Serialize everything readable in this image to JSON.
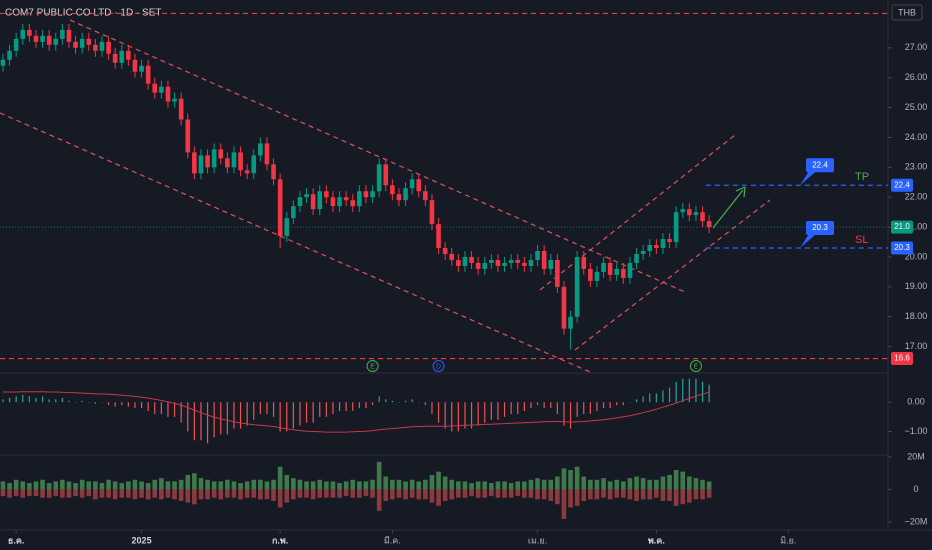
{
  "chart_data": [
    {
      "type": "candlestick",
      "title": "COM7 PUBLIC CO LTD · 1D · SET",
      "currency": "THB",
      "up_color": "#089981",
      "down_color": "#f23645",
      "open": [
        26.4,
        26.6,
        26.9,
        27.3,
        27.6,
        27.4,
        27.2,
        27.4,
        27.1,
        27.3,
        27.6,
        27.2,
        27.0,
        27.3,
        27.1,
        26.9,
        27.2,
        26.8,
        26.5,
        26.9,
        26.6,
        26.2,
        26.4,
        25.8,
        25.5,
        25.7,
        25.2,
        25.3,
        24.6,
        23.5,
        22.8,
        23.4,
        23.0,
        23.6,
        23.3,
        23.0,
        23.5,
        22.9,
        22.8,
        23.4,
        23.8,
        23.1,
        22.6,
        20.7,
        21.3,
        21.7,
        22.0,
        22.1,
        21.6,
        22.2,
        22.0,
        21.7,
        22.0,
        21.9,
        21.7,
        22.2,
        22.0,
        22.2,
        23.1,
        22.4,
        22.1,
        21.9,
        22.3,
        22.6,
        22.2,
        21.9,
        21.1,
        20.3,
        20.1,
        19.9,
        19.7,
        20.0,
        19.8,
        19.6,
        19.8,
        19.9,
        19.7,
        19.8,
        19.9,
        19.8,
        19.7,
        19.9,
        20.2,
        19.6,
        19.9,
        19.0,
        17.6,
        18.0,
        20.0,
        19.6,
        19.2,
        19.5,
        19.8,
        19.4,
        19.6,
        19.3,
        19.8,
        20.1,
        20.2,
        20.4,
        20.3,
        20.6,
        20.5,
        21.5,
        21.6,
        21.4,
        21.5,
        21.2
      ],
      "high": [
        26.8,
        27.1,
        27.5,
        27.8,
        27.8,
        27.6,
        27.6,
        27.6,
        27.5,
        27.8,
        27.8,
        27.4,
        27.5,
        27.5,
        27.3,
        27.4,
        27.4,
        27.0,
        27.1,
        27.1,
        26.8,
        26.6,
        26.6,
        26.0,
        25.9,
        25.9,
        25.5,
        25.5,
        24.8,
        23.7,
        23.6,
        23.6,
        23.8,
        23.8,
        23.5,
        23.7,
        23.7,
        23.1,
        23.6,
        24.0,
        24.0,
        23.3,
        22.8,
        21.5,
        21.9,
        22.2,
        22.3,
        22.3,
        22.4,
        22.4,
        22.2,
        22.2,
        22.2,
        22.1,
        22.4,
        22.4,
        22.4,
        23.3,
        23.3,
        22.6,
        22.3,
        22.5,
        22.8,
        22.8,
        22.4,
        22.1,
        21.3,
        20.5,
        20.3,
        20.1,
        20.2,
        20.2,
        20.0,
        20.0,
        20.1,
        20.1,
        20.0,
        20.1,
        20.1,
        20.0,
        20.1,
        20.4,
        20.4,
        20.1,
        20.1,
        19.2,
        18.2,
        20.2,
        20.2,
        19.8,
        19.7,
        20.0,
        20.0,
        19.8,
        19.8,
        20.0,
        20.3,
        20.4,
        20.6,
        20.6,
        20.8,
        20.8,
        21.7,
        21.8,
        21.8,
        21.7,
        21.7,
        21.4
      ],
      "low": [
        26.2,
        26.4,
        26.7,
        27.1,
        27.2,
        27.0,
        27.0,
        26.9,
        26.9,
        27.1,
        27.0,
        26.8,
        26.8,
        26.9,
        26.7,
        26.7,
        26.6,
        26.3,
        26.3,
        26.4,
        26.0,
        26.0,
        25.6,
        25.3,
        25.3,
        25.0,
        25.0,
        24.4,
        23.3,
        22.6,
        22.6,
        22.8,
        22.8,
        23.1,
        22.8,
        22.8,
        22.7,
        22.6,
        22.6,
        23.2,
        22.9,
        22.4,
        20.3,
        20.5,
        21.1,
        21.5,
        21.8,
        21.4,
        21.4,
        21.8,
        21.5,
        21.5,
        21.7,
        21.5,
        21.5,
        21.8,
        21.8,
        22.0,
        22.2,
        21.9,
        21.7,
        21.7,
        22.1,
        22.0,
        21.7,
        20.9,
        20.1,
        19.9,
        19.7,
        19.5,
        19.5,
        19.6,
        19.4,
        19.4,
        19.6,
        19.5,
        19.5,
        19.6,
        19.6,
        19.5,
        19.5,
        19.7,
        19.4,
        19.4,
        18.8,
        17.4,
        16.9,
        17.8,
        19.4,
        19.0,
        19.0,
        19.3,
        19.2,
        19.2,
        19.1,
        19.1,
        19.6,
        19.9,
        20.0,
        20.1,
        20.1,
        20.3,
        20.3,
        21.3,
        21.2,
        21.2,
        21.0,
        20.8
      ],
      "close": [
        26.6,
        26.9,
        27.3,
        27.6,
        27.4,
        27.2,
        27.4,
        27.1,
        27.3,
        27.6,
        27.2,
        27.0,
        27.3,
        27.1,
        26.9,
        27.2,
        26.8,
        26.5,
        26.9,
        26.6,
        26.2,
        26.4,
        25.8,
        25.5,
        25.7,
        25.2,
        25.3,
        24.6,
        23.5,
        22.8,
        23.4,
        23.0,
        23.6,
        23.3,
        23.0,
        23.5,
        22.9,
        22.8,
        23.4,
        23.8,
        23.1,
        22.6,
        20.7,
        21.3,
        21.7,
        22.0,
        22.1,
        21.6,
        22.2,
        22.0,
        21.7,
        22.0,
        21.9,
        21.7,
        22.2,
        22.0,
        22.2,
        23.1,
        22.4,
        22.1,
        21.9,
        22.3,
        22.6,
        22.2,
        21.9,
        21.1,
        20.3,
        20.1,
        19.9,
        19.7,
        20.0,
        19.8,
        19.6,
        19.8,
        19.9,
        19.7,
        19.8,
        19.9,
        19.8,
        19.7,
        19.9,
        20.2,
        19.6,
        19.9,
        19.0,
        17.6,
        18.0,
        20.0,
        19.6,
        19.2,
        19.5,
        19.8,
        19.4,
        19.6,
        19.3,
        19.8,
        20.1,
        20.2,
        20.4,
        20.3,
        20.6,
        20.5,
        21.5,
        21.6,
        21.4,
        21.5,
        21.2,
        21.0
      ],
      "xlim": [
        -0.45,
        134.1
      ],
      "xticks": [
        {
          "value": 2,
          "label": "ธ.ค."
        },
        {
          "value": 21,
          "label": "2025"
        },
        {
          "value": 42,
          "label": "ก.พ."
        },
        {
          "value": 59,
          "label": "มี.ค."
        },
        {
          "value": 81,
          "label": "เม.ย."
        },
        {
          "value": 99,
          "label": "พ.ค."
        },
        {
          "value": 119,
          "label": "มิ.ย."
        }
      ],
      "ylim": [
        16.15,
        28.6
      ],
      "yticks": [
        {
          "value": 17,
          "label": "17.00"
        },
        {
          "value": 18,
          "label": "18.00"
        },
        {
          "value": 19,
          "label": "19.00"
        },
        {
          "value": 20,
          "label": "20.00"
        },
        {
          "value": 21,
          "label": "21.00"
        },
        {
          "value": 22,
          "label": "22.00"
        },
        {
          "value": 23,
          "label": "23.00"
        },
        {
          "value": 24,
          "label": "24.00"
        },
        {
          "value": 25,
          "label": "25.00"
        },
        {
          "value": 26,
          "label": "26.00"
        },
        {
          "value": 27,
          "label": "27.00"
        }
      ],
      "last_price": {
        "value": 21,
        "label": "21.0"
      },
      "levels": [
        {
          "value": 22.4,
          "color": "#2962ff",
          "note": "TP",
          "note_color": "#4caf50"
        },
        {
          "value": 20.3,
          "color": "#2962ff",
          "note": "SL",
          "note_color": "#f23645"
        },
        {
          "value": 16.6,
          "color": "#f23645"
        }
      ],
      "top_line": {
        "value": 28.15,
        "color": "#f23645"
      },
      "events": [
        {
          "x": 56,
          "label": "E"
        },
        {
          "x": 66,
          "label": "D"
        },
        {
          "x": 105,
          "label": "E"
        }
      ]
    },
    {
      "type": "macd",
      "histogram": {
        "up_color": "#26a69a",
        "down_color": "#ef5350",
        "values": [
          0.1,
          0.15,
          0.2,
          0.25,
          0.2,
          0.15,
          0.2,
          0.1,
          0.1,
          0.15,
          0.05,
          0,
          0.05,
          0,
          -0.05,
          0,
          -0.1,
          -0.15,
          -0.1,
          -0.15,
          -0.2,
          -0.2,
          -0.3,
          -0.4,
          -0.4,
          -0.5,
          -0.5,
          -0.7,
          -1.0,
          -1.3,
          -1.3,
          -1.4,
          -1.2,
          -1.1,
          -1.1,
          -0.9,
          -0.9,
          -0.8,
          -0.6,
          -0.4,
          -0.4,
          -0.5,
          -1.0,
          -1.0,
          -0.9,
          -0.8,
          -0.7,
          -0.7,
          -0.5,
          -0.5,
          -0.4,
          -0.3,
          -0.3,
          -0.3,
          -0.2,
          -0.2,
          -0.1,
          0.2,
          0.1,
          0.05,
          0,
          0.05,
          0.1,
          0,
          -0.1,
          -0.4,
          -0.7,
          -0.9,
          -1.0,
          -1.0,
          -0.9,
          -0.9,
          -0.8,
          -0.7,
          -0.6,
          -0.6,
          -0.5,
          -0.4,
          -0.4,
          -0.3,
          -0.2,
          -0.1,
          -0.2,
          -0.2,
          -0.4,
          -0.8,
          -0.9,
          -0.5,
          -0.4,
          -0.4,
          -0.3,
          -0.2,
          -0.2,
          -0.1,
          -0.1,
          0,
          0.1,
          0.2,
          0.3,
          0.3,
          0.4,
          0.5,
          0.7,
          0.8,
          0.8,
          0.8,
          0.7,
          0.6
        ]
      },
      "line": {
        "color": "#c8374a",
        "values": [
          0.35,
          0.35,
          0.35,
          0.36,
          0.36,
          0.36,
          0.36,
          0.35,
          0.35,
          0.34,
          0.33,
          0.32,
          0.31,
          0.3,
          0.29,
          0.28,
          0.27,
          0.26,
          0.24,
          0.22,
          0.2,
          0.17,
          0.14,
          0.1,
          0.06,
          0.01,
          -0.04,
          -0.1,
          -0.18,
          -0.27,
          -0.36,
          -0.44,
          -0.51,
          -0.57,
          -0.62,
          -0.67,
          -0.71,
          -0.74,
          -0.77,
          -0.79,
          -0.81,
          -0.83,
          -0.87,
          -0.91,
          -0.94,
          -0.97,
          -0.99,
          -1.0,
          -1.01,
          -1.02,
          -1.02,
          -1.02,
          -1.02,
          -1.01,
          -1.0,
          -0.99,
          -0.97,
          -0.94,
          -0.92,
          -0.9,
          -0.88,
          -0.86,
          -0.84,
          -0.83,
          -0.82,
          -0.82,
          -0.82,
          -0.82,
          -0.81,
          -0.8,
          -0.79,
          -0.78,
          -0.77,
          -0.76,
          -0.75,
          -0.74,
          -0.73,
          -0.72,
          -0.71,
          -0.7,
          -0.69,
          -0.68,
          -0.67,
          -0.66,
          -0.66,
          -0.67,
          -0.68,
          -0.67,
          -0.66,
          -0.64,
          -0.62,
          -0.6,
          -0.57,
          -0.54,
          -0.5,
          -0.46,
          -0.41,
          -0.36,
          -0.3,
          -0.24,
          -0.17,
          -0.1,
          -0.03,
          0.05,
          0.13,
          0.21,
          0.28,
          0.34
        ]
      },
      "ylim": [
        -1.77,
        0.93
      ],
      "yticks": [
        {
          "value": 0,
          "label": "0.00"
        },
        {
          "value": -1,
          "label": "−1.00"
        }
      ]
    },
    {
      "type": "volume",
      "series": [
        {
          "color": "#3f7a4a",
          "values": [
            5,
            4,
            6,
            5,
            4,
            5,
            6,
            4,
            5,
            6,
            5,
            4,
            6,
            5,
            5,
            4,
            6,
            5,
            4,
            5,
            6,
            5,
            4,
            6,
            7,
            5,
            5,
            6,
            9,
            10,
            7,
            6,
            5,
            5,
            6,
            5,
            4,
            5,
            6,
            6,
            5,
            6,
            14,
            9,
            7,
            6,
            5,
            5,
            6,
            5,
            5,
            4,
            5,
            6,
            5,
            5,
            6,
            17,
            8,
            6,
            6,
            5,
            6,
            5,
            6,
            9,
            11,
            8,
            6,
            5,
            5,
            4,
            5,
            5,
            4,
            5,
            5,
            4,
            5,
            5,
            6,
            7,
            6,
            6,
            8,
            13,
            12,
            14,
            8,
            6,
            6,
            7,
            5,
            6,
            5,
            7,
            8,
            7,
            6,
            6,
            8,
            9,
            12,
            11,
            8,
            7,
            6,
            5
          ]
        },
        {
          "color": "#8c3a3e",
          "values": [
            -4,
            -5,
            -4,
            -5,
            -4,
            -4,
            -5,
            -5,
            -4,
            -5,
            -5,
            -4,
            -5,
            -4,
            -6,
            -5,
            -5,
            -6,
            -5,
            -5,
            -6,
            -5,
            -6,
            -5,
            -6,
            -5,
            -6,
            -7,
            -8,
            -9,
            -6,
            -6,
            -5,
            -6,
            -5,
            -5,
            -6,
            -5,
            -5,
            -6,
            -6,
            -7,
            -11,
            -8,
            -6,
            -5,
            -5,
            -6,
            -5,
            -5,
            -5,
            -5,
            -4,
            -5,
            -5,
            -4,
            -5,
            -13,
            -7,
            -6,
            -5,
            -6,
            -5,
            -6,
            -6,
            -8,
            -10,
            -7,
            -6,
            -5,
            -5,
            -4,
            -5,
            -5,
            -4,
            -5,
            -5,
            -5,
            -4,
            -5,
            -5,
            -6,
            -6,
            -7,
            -9,
            -18,
            -11,
            -10,
            -7,
            -6,
            -6,
            -5,
            -6,
            -5,
            -5,
            -6,
            -7,
            -6,
            -6,
            -5,
            -7,
            -7,
            -10,
            -9,
            -8,
            -6,
            -6,
            -5
          ]
        }
      ],
      "ylim": [
        -24.2,
        20.6
      ],
      "yticks": [
        {
          "value": 20,
          "label": "20M"
        },
        0,
        {
          "value": -20,
          "label": "−20M"
        }
      ]
    }
  ]
}
